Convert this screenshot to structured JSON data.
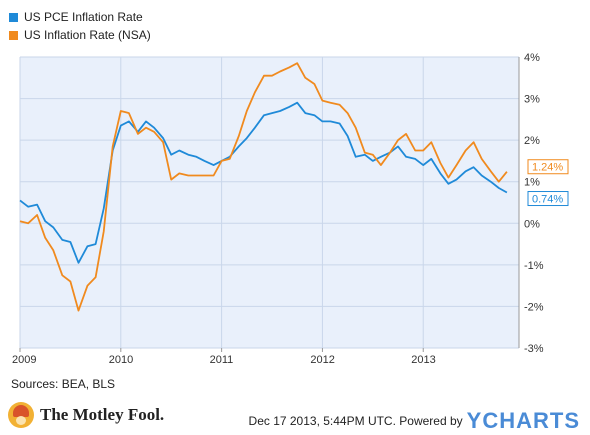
{
  "legend": [
    {
      "name": "US PCE Inflation Rate",
      "color": "#1f8ad8"
    },
    {
      "name": "US Inflation Rate (NSA)",
      "color": "#f08a1e"
    }
  ],
  "sources_text": "Sources: BEA, BLS",
  "footer": {
    "brand": "The Motley Fool.",
    "timestamp": "Dec 17 2013, 5:44PM UTC.",
    "powered_by": "Powered by",
    "ycharts_logo": "YCHARTS"
  },
  "colors": {
    "plot_bg": "#e9f0fb",
    "grid": "#c9d6ea",
    "pce": "#1f8ad8",
    "cpi": "#f08a1e"
  },
  "chart_data": {
    "type": "line",
    "x_unit": "year",
    "xlim": [
      2009.0,
      2013.95
    ],
    "ylim": [
      -3,
      4
    ],
    "ylabel": "",
    "xlabel": "",
    "grid": true,
    "y_axis_side": "right",
    "y_ticks": [
      {
        "value": 4,
        "label": "4%"
      },
      {
        "value": 3,
        "label": "3%"
      },
      {
        "value": 2,
        "label": "2%"
      },
      {
        "value": 1,
        "label": "1%"
      },
      {
        "value": 0,
        "label": "0%"
      },
      {
        "value": -1,
        "label": "-1%"
      },
      {
        "value": -2,
        "label": "-2%"
      },
      {
        "value": -3,
        "label": "-3%"
      }
    ],
    "x_ticks": [
      {
        "value": 2009,
        "label": "2009"
      },
      {
        "value": 2010,
        "label": "2010"
      },
      {
        "value": 2011,
        "label": "2011"
      },
      {
        "value": 2012,
        "label": "2012"
      },
      {
        "value": 2013,
        "label": "2013"
      }
    ],
    "end_labels": [
      {
        "series": "US Inflation Rate (NSA)",
        "value": 1.24,
        "label": "1.24%"
      },
      {
        "series": "US PCE Inflation Rate",
        "value": 0.74,
        "label": "0.74%"
      }
    ],
    "series": [
      {
        "name": "US PCE Inflation Rate",
        "points": [
          [
            2009.0,
            0.55
          ],
          [
            2009.08,
            0.4
          ],
          [
            2009.17,
            0.45
          ],
          [
            2009.25,
            0.05
          ],
          [
            2009.33,
            -0.1
          ],
          [
            2009.42,
            -0.4
          ],
          [
            2009.5,
            -0.45
          ],
          [
            2009.58,
            -0.95
          ],
          [
            2009.67,
            -0.55
          ],
          [
            2009.75,
            -0.5
          ],
          [
            2009.83,
            0.35
          ],
          [
            2009.92,
            1.75
          ],
          [
            2010.0,
            2.35
          ],
          [
            2010.08,
            2.45
          ],
          [
            2010.17,
            2.2
          ],
          [
            2010.25,
            2.45
          ],
          [
            2010.33,
            2.3
          ],
          [
            2010.42,
            2.05
          ],
          [
            2010.5,
            1.65
          ],
          [
            2010.58,
            1.75
          ],
          [
            2010.67,
            1.65
          ],
          [
            2010.75,
            1.6
          ],
          [
            2010.83,
            1.5
          ],
          [
            2010.92,
            1.4
          ],
          [
            2011.0,
            1.5
          ],
          [
            2011.08,
            1.6
          ],
          [
            2011.17,
            1.85
          ],
          [
            2011.25,
            2.05
          ],
          [
            2011.33,
            2.3
          ],
          [
            2011.42,
            2.6
          ],
          [
            2011.5,
            2.65
          ],
          [
            2011.58,
            2.7
          ],
          [
            2011.67,
            2.8
          ],
          [
            2011.75,
            2.9
          ],
          [
            2011.83,
            2.65
          ],
          [
            2011.92,
            2.6
          ],
          [
            2012.0,
            2.45
          ],
          [
            2012.08,
            2.45
          ],
          [
            2012.17,
            2.4
          ],
          [
            2012.25,
            2.1
          ],
          [
            2012.33,
            1.6
          ],
          [
            2012.42,
            1.65
          ],
          [
            2012.5,
            1.5
          ],
          [
            2012.58,
            1.6
          ],
          [
            2012.67,
            1.7
          ],
          [
            2012.75,
            1.85
          ],
          [
            2012.83,
            1.6
          ],
          [
            2012.92,
            1.55
          ],
          [
            2013.0,
            1.4
          ],
          [
            2013.08,
            1.55
          ],
          [
            2013.17,
            1.2
          ],
          [
            2013.25,
            0.95
          ],
          [
            2013.33,
            1.05
          ],
          [
            2013.42,
            1.25
          ],
          [
            2013.5,
            1.35
          ],
          [
            2013.58,
            1.15
          ],
          [
            2013.67,
            1.0
          ],
          [
            2013.75,
            0.85
          ],
          [
            2013.83,
            0.74
          ]
        ]
      },
      {
        "name": "US Inflation Rate (NSA)",
        "points": [
          [
            2009.0,
            0.05
          ],
          [
            2009.08,
            0.0
          ],
          [
            2009.17,
            0.2
          ],
          [
            2009.25,
            -0.35
          ],
          [
            2009.33,
            -0.65
          ],
          [
            2009.42,
            -1.25
          ],
          [
            2009.5,
            -1.4
          ],
          [
            2009.58,
            -2.1
          ],
          [
            2009.67,
            -1.5
          ],
          [
            2009.75,
            -1.3
          ],
          [
            2009.83,
            -0.2
          ],
          [
            2009.92,
            1.85
          ],
          [
            2010.0,
            2.7
          ],
          [
            2010.08,
            2.65
          ],
          [
            2010.17,
            2.15
          ],
          [
            2010.25,
            2.3
          ],
          [
            2010.33,
            2.2
          ],
          [
            2010.42,
            1.95
          ],
          [
            2010.5,
            1.05
          ],
          [
            2010.58,
            1.2
          ],
          [
            2010.67,
            1.15
          ],
          [
            2010.75,
            1.15
          ],
          [
            2010.83,
            1.15
          ],
          [
            2010.92,
            1.15
          ],
          [
            2011.0,
            1.5
          ],
          [
            2011.08,
            1.55
          ],
          [
            2011.17,
            2.1
          ],
          [
            2011.25,
            2.7
          ],
          [
            2011.33,
            3.15
          ],
          [
            2011.42,
            3.55
          ],
          [
            2011.5,
            3.55
          ],
          [
            2011.58,
            3.65
          ],
          [
            2011.67,
            3.75
          ],
          [
            2011.75,
            3.85
          ],
          [
            2011.83,
            3.5
          ],
          [
            2011.92,
            3.35
          ],
          [
            2012.0,
            2.95
          ],
          [
            2012.08,
            2.9
          ],
          [
            2012.17,
            2.85
          ],
          [
            2012.25,
            2.65
          ],
          [
            2012.33,
            2.3
          ],
          [
            2012.42,
            1.7
          ],
          [
            2012.5,
            1.65
          ],
          [
            2012.58,
            1.4
          ],
          [
            2012.67,
            1.7
          ],
          [
            2012.75,
            2.0
          ],
          [
            2012.83,
            2.15
          ],
          [
            2012.92,
            1.75
          ],
          [
            2013.0,
            1.75
          ],
          [
            2013.08,
            1.95
          ],
          [
            2013.17,
            1.45
          ],
          [
            2013.25,
            1.1
          ],
          [
            2013.33,
            1.4
          ],
          [
            2013.42,
            1.75
          ],
          [
            2013.5,
            1.95
          ],
          [
            2013.58,
            1.55
          ],
          [
            2013.67,
            1.25
          ],
          [
            2013.75,
            1.0
          ],
          [
            2013.83,
            1.24
          ]
        ]
      }
    ]
  }
}
